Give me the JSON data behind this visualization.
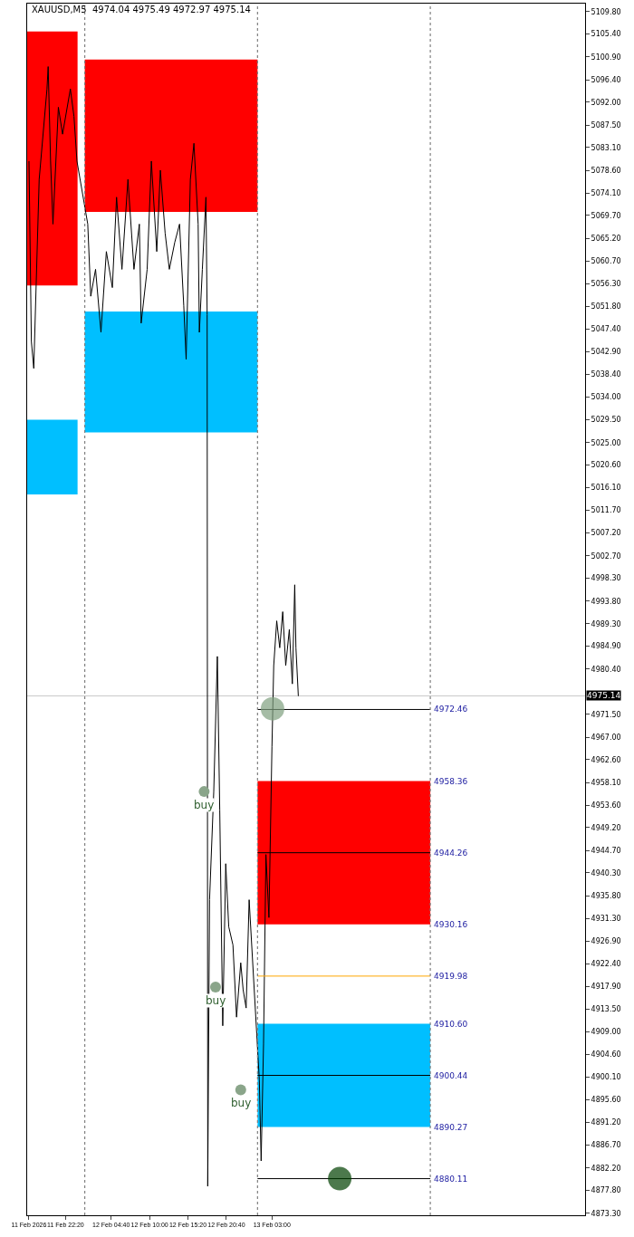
{
  "chart_data": {
    "type": "line",
    "title": "XAUUSD,M5  4974.04 4975.49 4972.97 4975.14",
    "line_style": "solid",
    "grid": false,
    "xlim": [
      "2026-02-11T17:00",
      "2026-02-14T22:30"
    ],
    "ylim": [
      4872.9,
      5111.4
    ],
    "xticks": [
      {
        "value": "2026-02-11T17:15",
        "label": "11 Feb 2026"
      },
      {
        "value": "2026-02-11T22:20",
        "label": "11 Feb 22:20"
      },
      {
        "value": "2026-02-12T04:40",
        "label": "12 Feb 04:40"
      },
      {
        "value": "2026-02-12T10:00",
        "label": "12 Feb 10:00"
      },
      {
        "value": "2026-02-12T15:20",
        "label": "12 Feb 15:20"
      },
      {
        "value": "2026-02-12T20:40",
        "label": "12 Feb 20:40"
      },
      {
        "value": "2026-02-13T03:00",
        "label": "13 Feb 03:00"
      }
    ],
    "yticks": [
      {
        "value": 5109.8,
        "label": "5109.80"
      },
      {
        "value": 5105.4,
        "label": "5105.40"
      },
      {
        "value": 5100.9,
        "label": "5100.90"
      },
      {
        "value": 5096.4,
        "label": "5096.40"
      },
      {
        "value": 5092.0,
        "label": "5092.00"
      },
      {
        "value": 5087.5,
        "label": "5087.50"
      },
      {
        "value": 5083.1,
        "label": "5083.10"
      },
      {
        "value": 5078.6,
        "label": "5078.60"
      },
      {
        "value": 5074.1,
        "label": "5074.10"
      },
      {
        "value": 5069.7,
        "label": "5069.70"
      },
      {
        "value": 5065.2,
        "label": "5065.20"
      },
      {
        "value": 5060.7,
        "label": "5060.70"
      },
      {
        "value": 5056.3,
        "label": "5056.30"
      },
      {
        "value": 5051.8,
        "label": "5051.80"
      },
      {
        "value": 5047.4,
        "label": "5047.40"
      },
      {
        "value": 5042.9,
        "label": "5042.90"
      },
      {
        "value": 5038.4,
        "label": "5038.40"
      },
      {
        "value": 5034.0,
        "label": "5034.00"
      },
      {
        "value": 5029.5,
        "label": "5029.50"
      },
      {
        "value": 5025.0,
        "label": "5025.00"
      },
      {
        "value": 5020.6,
        "label": "5020.60"
      },
      {
        "value": 5016.1,
        "label": "5016.10"
      },
      {
        "value": 5011.7,
        "label": "5011.70"
      },
      {
        "value": 5007.2,
        "label": "5007.20"
      },
      {
        "value": 5002.7,
        "label": "5002.70"
      },
      {
        "value": 4998.3,
        "label": "4998.30"
      },
      {
        "value": 4993.8,
        "label": "4993.80"
      },
      {
        "value": 4989.3,
        "label": "4989.30"
      },
      {
        "value": 4984.9,
        "label": "4984.90"
      },
      {
        "value": 4980.4,
        "label": "4980.40"
      },
      {
        "value": 4971.5,
        "label": "4971.50"
      },
      {
        "value": 4967.0,
        "label": "4967.00"
      },
      {
        "value": 4962.6,
        "label": "4962.60"
      },
      {
        "value": 4958.1,
        "label": "4958.10"
      },
      {
        "value": 4953.6,
        "label": "4953.60"
      },
      {
        "value": 4949.2,
        "label": "4949.20"
      },
      {
        "value": 4944.7,
        "label": "4944.70"
      },
      {
        "value": 4940.3,
        "label": "4940.30"
      },
      {
        "value": 4935.8,
        "label": "4935.80"
      },
      {
        "value": 4931.3,
        "label": "4931.30"
      },
      {
        "value": 4926.9,
        "label": "4926.90"
      },
      {
        "value": 4922.4,
        "label": "4922.40"
      },
      {
        "value": 4917.9,
        "label": "4917.90"
      },
      {
        "value": 4913.5,
        "label": "4913.50"
      },
      {
        "value": 4909.0,
        "label": "4909.00"
      },
      {
        "value": 4904.6,
        "label": "4904.60"
      },
      {
        "value": 4900.1,
        "label": "4900.10"
      },
      {
        "value": 4895.6,
        "label": "4895.60"
      },
      {
        "value": 4891.2,
        "label": "4891.20"
      },
      {
        "value": 4886.7,
        "label": "4886.70"
      },
      {
        "value": 4882.2,
        "label": "4882.20"
      },
      {
        "value": 4877.8,
        "label": "4877.80"
      },
      {
        "value": 4873.3,
        "label": "4873.30"
      }
    ],
    "ref_lines": [
      {
        "axis": "x",
        "value": "2026-02-12T01:00",
        "color": "#808080",
        "line_style": "dotted"
      },
      {
        "axis": "x",
        "value": "2026-02-13T01:00",
        "color": "#808080",
        "line_style": "dotted"
      },
      {
        "axis": "x",
        "value": "2026-02-14T01:00",
        "color": "#808080",
        "line_style": "dotted"
      },
      {
        "axis": "y",
        "value": 4975.14,
        "label": "4975.14",
        "color": "#c8c8c8",
        "line_style": "solid"
      }
    ],
    "series": [
      {
        "type": "area",
        "color": "#ff0000",
        "x": [
          "2026-02-11T17:00",
          "2026-02-12T00:00"
        ],
        "values": [
          null,
          null
        ],
        "lower": [
          5055.9,
          5055.9
        ],
        "upper": [
          5105.9,
          5105.9
        ]
      },
      {
        "type": "area",
        "color": "#00bfff",
        "x": [
          "2026-02-11T17:00",
          "2026-02-12T00:00"
        ],
        "values": [
          null,
          null
        ],
        "lower": [
          5014.8,
          5014.8
        ],
        "upper": [
          5029.5,
          5029.5
        ]
      },
      {
        "type": "area",
        "color": "#ff0000",
        "x": [
          "2026-02-12T01:00",
          "2026-02-13T01:00"
        ],
        "values": [
          null,
          null
        ],
        "lower": [
          5070.4,
          5070.4
        ],
        "upper": [
          5100.4,
          5100.4
        ]
      },
      {
        "type": "area",
        "color": "#00bfff",
        "x": [
          "2026-02-12T01:00",
          "2026-02-13T01:00"
        ],
        "values": [
          null,
          null
        ],
        "lower": [
          5027.0,
          5027.0
        ],
        "upper": [
          5050.8,
          5050.8
        ]
      },
      {
        "type": "area",
        "color": "#ff0000",
        "x": [
          "2026-02-13T01:00",
          "2026-02-14T01:00"
        ],
        "values": [
          null,
          null
        ],
        "lower": [
          4930.16,
          4930.16
        ],
        "upper": [
          4958.36,
          4958.36
        ]
      },
      {
        "type": "area",
        "color": "#00bfff",
        "x": [
          "2026-02-13T01:00",
          "2026-02-14T01:00"
        ],
        "values": [
          null,
          null
        ],
        "lower": [
          4890.27,
          4890.27
        ],
        "upper": [
          4910.6,
          4910.6
        ]
      },
      {
        "color": "#000000",
        "marker": "none",
        "x": [
          "2026-02-11T17:15",
          "2026-02-11T17:35",
          "2026-02-11T17:55",
          "2026-02-11T18:40",
          "2026-02-11T19:45",
          "2026-02-11T19:55",
          "2026-02-11T20:15",
          "2026-02-11T20:35",
          "2026-02-11T21:20",
          "2026-02-11T21:55",
          "2026-02-11T23:00",
          "2026-02-11T23:30",
          "2026-02-11T23:55",
          "2026-02-12T01:25",
          "2026-02-12T01:50",
          "2026-02-12T02:30",
          "2026-02-12T03:15",
          "2026-02-12T04:00",
          "2026-02-12T04:50",
          "2026-02-12T05:25",
          "2026-02-12T06:10",
          "2026-02-12T07:00",
          "2026-02-12T07:50",
          "2026-02-12T08:35",
          "2026-02-12T08:50",
          "2026-02-12T09:40",
          "2026-02-12T10:15",
          "2026-02-12T11:00",
          "2026-02-12T11:30",
          "2026-02-12T12:10",
          "2026-02-12T12:45",
          "2026-02-12T13:30",
          "2026-02-12T14:10",
          "2026-02-12T14:45",
          "2026-02-12T15:05",
          "2026-02-12T15:40",
          "2026-02-12T16:10",
          "2026-02-12T16:45",
          "2026-02-12T16:55",
          "2026-02-12T17:20",
          "2026-02-12T17:50",
          "2026-02-12T18:00",
          "2026-02-12T18:05",
          "2026-02-12T18:20",
          "2026-02-12T18:55",
          "2026-02-12T19:25",
          "2026-02-12T19:45",
          "2026-02-12T20:10",
          "2026-02-12T20:35",
          "2026-02-12T21:00",
          "2026-02-12T21:35",
          "2026-02-12T22:05",
          "2026-02-12T22:40",
          "2026-02-12T23:00",
          "2026-02-12T23:25",
          "2026-02-12T23:50",
          "2026-02-13T01:15",
          "2026-02-13T01:30",
          "2026-02-13T01:50",
          "2026-02-13T02:10",
          "2026-02-13T02:35",
          "2026-02-13T03:00",
          "2026-02-13T03:15",
          "2026-02-13T03:40",
          "2026-02-13T04:05",
          "2026-02-13T04:30",
          "2026-02-13T04:55",
          "2026-02-13T05:25",
          "2026-02-13T05:50",
          "2026-02-13T06:10",
          "2026-02-13T06:20",
          "2026-02-13T06:40"
        ],
        "values": [
          5080.4,
          5044.9,
          5039.6,
          5076.8,
          5094.6,
          5099.0,
          5080.4,
          5068.0,
          5091.0,
          5085.7,
          5094.6,
          5089.2,
          5080.4,
          5068.0,
          5053.8,
          5059.1,
          5046.7,
          5062.6,
          5055.5,
          5073.3,
          5059.1,
          5076.8,
          5059.1,
          5068.0,
          5048.5,
          5059.1,
          5080.4,
          5062.6,
          5078.6,
          5066.2,
          5059.1,
          5064.4,
          5068.0,
          5052.0,
          5041.4,
          5076.8,
          5083.9,
          5068.0,
          5046.7,
          5059.1,
          5073.3,
          5050.2,
          4878.6,
          4935.0,
          4956.3,
          4982.9,
          4952.7,
          4910.2,
          4942.1,
          4929.7,
          4926.1,
          4911.9,
          4922.6,
          4917.3,
          4913.7,
          4935.0,
          4899.5,
          4883.6,
          4906.6,
          4943.9,
          4931.5,
          4965.1,
          4981.1,
          4989.9,
          4984.6,
          4991.7,
          4981.1,
          4988.2,
          4977.5,
          4997.0,
          4984.6,
          4975.1
        ]
      },
      {
        "type": "line",
        "name": "4972.46",
        "color": "#000000",
        "marker": "none",
        "x": [
          "2026-02-13T01:00",
          "2026-02-14T01:00"
        ],
        "values": [
          4972.46,
          4972.46
        ]
      },
      {
        "type": "line",
        "name": "4944.26",
        "color": "#000000",
        "marker": "none",
        "x": [
          "2026-02-13T01:00",
          "2026-02-14T01:00"
        ],
        "values": [
          4944.26,
          4944.26
        ]
      },
      {
        "type": "line",
        "name": "4919.98",
        "color": "#ffa500",
        "marker": "none",
        "x": [
          "2026-02-13T01:00",
          "2026-02-14T01:00"
        ],
        "values": [
          4919.98,
          4919.98
        ]
      },
      {
        "type": "line",
        "name": "4900.44",
        "color": "#000000",
        "marker": "none",
        "x": [
          "2026-02-13T01:00",
          "2026-02-14T01:00"
        ],
        "values": [
          4900.44,
          4900.44
        ]
      },
      {
        "type": "line",
        "name": "4880.11",
        "color": "#000000",
        "marker": "none",
        "x": [
          "2026-02-13T01:00",
          "2026-02-14T01:00"
        ],
        "values": [
          4880.11,
          4880.11
        ]
      },
      {
        "type": "scatter",
        "color": "#8aa58a",
        "marker": "circle",
        "x": [
          "2026-02-12T17:35",
          "2026-02-12T19:10",
          "2026-02-12T22:40"
        ],
        "values": [
          4956.3,
          4917.8,
          4897.6
        ],
        "value_labels": [
          "buy",
          "buy",
          "buy"
        ]
      },
      {
        "type": "bubble",
        "colors": [
          "#7f9f7f",
          "#004000"
        ],
        "marker": "circle",
        "x": [
          "2026-02-13T03:05",
          "2026-02-13T12:25"
        ],
        "values": [
          4972.6,
          4880.1
        ],
        "sizes": [
          1,
          1
        ]
      }
    ],
    "annotations": [
      {
        "text": "4958.36",
        "x": "2026-02-14T01:00",
        "y": 4958.36
      },
      {
        "text": "4930.16",
        "x": "2026-02-14T01:00",
        "y": 4930.16
      },
      {
        "text": "4910.60",
        "x": "2026-02-14T01:00",
        "y": 4910.6
      },
      {
        "text": "4890.27",
        "x": "2026-02-14T01:00",
        "y": 4890.27
      }
    ]
  }
}
